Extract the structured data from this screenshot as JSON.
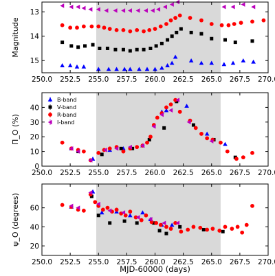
{
  "chart_data": [
    {
      "type": "scatter",
      "ylabel": "Magnitude",
      "xlim": [
        250,
        270
      ],
      "ylim": [
        15.5,
        12.6
      ],
      "y_inverted": true,
      "shaded_x": [
        254.8,
        265.8
      ],
      "xticks": [
        "250.0",
        "252.5",
        "255.0",
        "257.5",
        "260.0",
        "262.5",
        "265.0",
        "267.5",
        "270.0"
      ],
      "yticks": [
        "13",
        "14",
        "15"
      ],
      "series": [
        {
          "name": "B-band",
          "color": "#0000ff",
          "marker": "triangle-up",
          "x": [
            251.8,
            252.5,
            253.1,
            253.7,
            255.0,
            255.9,
            256.6,
            257.3,
            257.8,
            258.6,
            259.3,
            260.0,
            260.6,
            261.1,
            261.5,
            261.8,
            263.2,
            264.1,
            265.0,
            266.1,
            266.9,
            267.8,
            268.7
          ],
          "y": [
            15.2,
            15.2,
            15.25,
            15.25,
            15.35,
            15.35,
            15.35,
            15.35,
            15.35,
            15.35,
            15.35,
            15.35,
            15.3,
            15.2,
            15.1,
            14.85,
            15.0,
            15.1,
            15.1,
            15.15,
            15.1,
            15.0,
            15.05
          ]
        },
        {
          "name": "V-band",
          "color": "#000000",
          "marker": "square",
          "x": [
            251.8,
            252.6,
            253.2,
            253.8,
            254.5,
            255.1,
            255.8,
            256.5,
            257.2,
            257.8,
            258.4,
            259.0,
            259.6,
            260.1,
            260.6,
            261.1,
            261.5,
            261.9,
            262.3,
            263.2,
            264.1,
            265.0,
            266.2,
            267.1,
            268.6
          ],
          "y": [
            14.25,
            14.4,
            14.45,
            14.4,
            14.35,
            14.5,
            14.5,
            14.55,
            14.55,
            14.6,
            14.55,
            14.55,
            14.5,
            14.4,
            14.3,
            14.15,
            14.0,
            13.85,
            13.7,
            13.85,
            13.9,
            14.1,
            14.15,
            14.25,
            14.2
          ]
        },
        {
          "name": "R-band",
          "color": "#ff0000",
          "marker": "circle",
          "x": [
            251.8,
            252.5,
            253.1,
            253.7,
            254.4,
            255.0,
            255.5,
            256.0,
            256.6,
            257.2,
            257.8,
            258.4,
            259.0,
            259.5,
            260.0,
            260.5,
            261.0,
            261.4,
            261.8,
            262.2,
            263.1,
            264.1,
            265.0,
            265.9,
            266.5,
            267.0,
            267.6,
            268.6,
            269.6
          ],
          "y": [
            13.55,
            13.65,
            13.65,
            13.6,
            13.6,
            13.6,
            13.65,
            13.7,
            13.75,
            13.75,
            13.8,
            13.75,
            13.8,
            13.75,
            13.7,
            13.6,
            13.5,
            13.35,
            13.25,
            13.15,
            13.25,
            13.35,
            13.5,
            13.55,
            13.55,
            13.5,
            13.45,
            13.4,
            13.35
          ]
        },
        {
          "name": "I-band",
          "color": "#bb00bb",
          "marker": "triangle-left",
          "x": [
            251.8,
            252.6,
            253.2,
            253.7,
            254.3,
            255.0,
            255.7,
            256.5,
            257.2,
            257.8,
            258.5,
            259.2,
            259.8,
            260.3,
            260.9,
            261.5,
            262.0,
            266.1,
            266.9,
            267.8,
            268.7
          ],
          "y": [
            12.75,
            12.8,
            12.8,
            12.85,
            12.9,
            12.9,
            12.95,
            12.95,
            12.95,
            12.95,
            12.95,
            12.95,
            12.95,
            12.9,
            12.8,
            12.7,
            12.6,
            12.8,
            12.8,
            12.7,
            12.8
          ]
        }
      ]
    },
    {
      "type": "scatter",
      "ylabel": "Π_O (%)",
      "xlim": [
        250,
        270
      ],
      "ylim": [
        0,
        50
      ],
      "shaded_x": [
        254.8,
        265.8
      ],
      "xticks": [
        "250.0",
        "252.5",
        "255.0",
        "257.5",
        "260.0",
        "262.5",
        "265.0",
        "267.5",
        "270.0"
      ],
      "yticks": [
        "0",
        "10",
        "20",
        "30",
        "40"
      ],
      "legend": {
        "position": "top-left",
        "entries": [
          "B-band",
          "V-band",
          "R-band",
          "I-band"
        ]
      },
      "series": [
        {
          "name": "B-band",
          "color": "#0000ff",
          "marker": "triangle-up",
          "x": [
            252.6,
            254.5,
            256.0,
            257.2,
            258.9,
            260.6,
            261.0,
            262.8,
            264.6,
            266.2
          ],
          "y": [
            12,
            5,
            11,
            12,
            14,
            37,
            38,
            41,
            22,
            15
          ]
        },
        {
          "name": "V-band",
          "color": "#000000",
          "marker": "square",
          "x": [
            253.2,
            255.3,
            257.0,
            258.0,
            259.5,
            260.8,
            261.9,
            263.4,
            265.2,
            267.1
          ],
          "y": [
            10,
            8,
            12,
            12,
            18,
            26,
            44,
            28,
            18,
            6
          ]
        },
        {
          "name": "R-band",
          "color": "#ff0000",
          "marker": "circle",
          "x": [
            251.8,
            252.6,
            253.2,
            253.7,
            254.3,
            255.0,
            255.5,
            256.0,
            256.6,
            257.2,
            257.8,
            258.4,
            258.9,
            259.3,
            259.6,
            259.9,
            260.2,
            260.6,
            261.0,
            261.4,
            261.8,
            262.2,
            263.1,
            263.6,
            264.1,
            264.6,
            265.1,
            265.8,
            266.4,
            267.2,
            267.8,
            268.6
          ],
          "y": [
            16,
            12,
            11,
            10,
            4,
            9,
            11,
            12,
            13,
            10,
            12,
            13,
            14,
            16,
            20,
            28,
            33,
            36,
            40,
            42,
            45,
            37,
            31,
            26,
            22,
            19,
            18,
            16,
            10,
            5,
            6,
            9
          ]
        },
        {
          "name": "I-band",
          "color": "#bb00bb",
          "marker": "triangle-left",
          "x": [
            252.6,
            253.2,
            254.3,
            255.6,
            256.6,
            257.8,
            258.9,
            259.9,
            260.6,
            261.4,
            262.0,
            263.0,
            265.0
          ],
          "y": [
            12,
            10,
            4,
            11,
            12,
            13,
            14,
            27,
            35,
            38,
            45,
            30,
            17
          ]
        }
      ]
    },
    {
      "type": "scatter",
      "xlabel": "MJD-60000 (days)",
      "ylabel": "ψ_O (degrees)",
      "xlim": [
        250,
        270
      ],
      "ylim": [
        10,
        85
      ],
      "shaded_x": [
        254.8,
        265.8
      ],
      "xticks": [
        "250.0",
        "252.5",
        "255.0",
        "257.5",
        "260.0",
        "262.5",
        "265.0",
        "267.5",
        "270.0"
      ],
      "yticks": [
        "20",
        "40",
        "60"
      ],
      "series": [
        {
          "name": "B-band",
          "color": "#0000ff",
          "marker": "triangle-up",
          "x": [
            252.6,
            254.5,
            255.3,
            256.6,
            257.8,
            258.9,
            259.6,
            260.6,
            261.5
          ],
          "y": [
            61,
            77,
            55,
            56,
            52,
            55,
            48,
            42,
            42
          ]
        },
        {
          "name": "V-band",
          "color": "#000000",
          "marker": "square",
          "x": [
            254.4,
            255.0,
            256.0,
            257.3,
            258.4,
            259.9,
            260.4,
            261.0,
            262.2,
            264.3,
            266.0
          ],
          "y": [
            72,
            52,
            44,
            46,
            44,
            44,
            36,
            33,
            40,
            37,
            35
          ]
        },
        {
          "name": "R-band",
          "color": "#ff0000",
          "marker": "circle",
          "x": [
            251.8,
            252.6,
            253.2,
            253.7,
            254.3,
            254.7,
            255.0,
            255.4,
            255.8,
            256.2,
            256.6,
            257.0,
            257.4,
            257.8,
            258.3,
            258.8,
            259.2,
            259.7,
            260.1,
            260.5,
            261.0,
            261.4,
            261.8,
            262.3,
            262.9,
            263.4,
            264.0,
            264.6,
            265.1,
            265.7,
            266.2,
            266.8,
            267.3,
            267.7,
            268.1,
            268.6
          ],
          "y": [
            63,
            61,
            58,
            57,
            74,
            66,
            62,
            58,
            60,
            56,
            58,
            54,
            52,
            56,
            50,
            47,
            52,
            45,
            44,
            42,
            40,
            38,
            44,
            35,
            37,
            40,
            39,
            37,
            38,
            36,
            40,
            38,
            40,
            34,
            42,
            62
          ]
        },
        {
          "name": "I-band",
          "color": "#bb00bb",
          "marker": "triangle-left",
          "x": [
            252.6,
            253.2,
            254.3,
            255.0,
            256.0,
            257.2,
            258.5,
            259.6,
            260.8,
            262.0
          ],
          "y": [
            62,
            60,
            76,
            64,
            57,
            55,
            50,
            48,
            44,
            44
          ]
        }
      ]
    }
  ]
}
